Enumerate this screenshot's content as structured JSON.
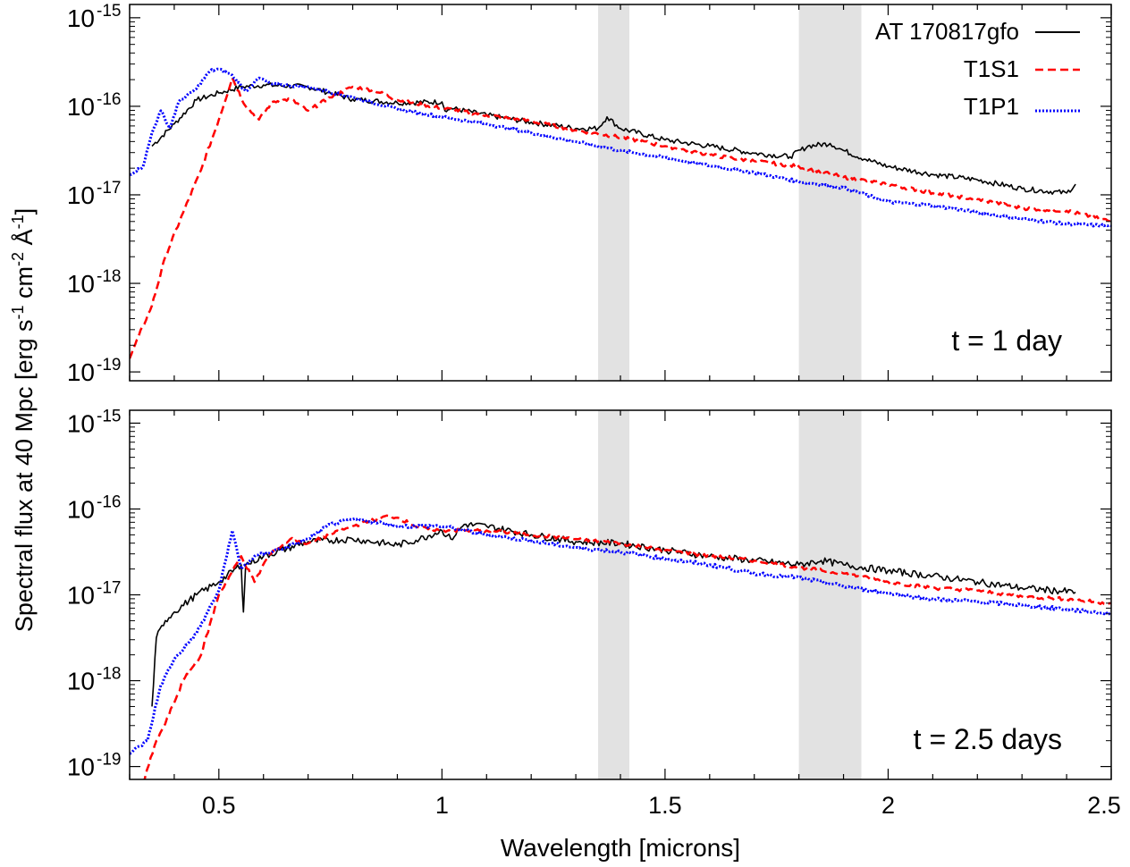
{
  "chart_data": [
    {
      "type": "line",
      "panel": "top",
      "annotation": "t = 1 day",
      "xlim": [
        0.3,
        2.5
      ],
      "ylim_log10": [
        -19.1,
        -14.85
      ],
      "yscale": "log",
      "xticks": [
        0.5,
        1,
        1.5,
        2,
        2.5
      ],
      "yticks": [
        {
          "exp": -19,
          "label_base": "10",
          "label_exp": "-19"
        },
        {
          "exp": -18,
          "label_base": "10",
          "label_exp": "-18"
        },
        {
          "exp": -17,
          "label_base": "10",
          "label_exp": "-17"
        },
        {
          "exp": -16,
          "label_base": "10",
          "label_exp": "-16"
        },
        {
          "exp": -15,
          "label_base": "10",
          "label_exp": "-15"
        }
      ],
      "shaded_bands": [
        [
          1.35,
          1.42
        ],
        [
          1.8,
          1.94
        ]
      ],
      "series": [
        {
          "name": "AT 170817gfo",
          "style": "solid",
          "color": "#000000",
          "noise": 0.03,
          "points": [
            [
              0.35,
              -16.45
            ],
            [
              0.4,
              -16.2
            ],
            [
              0.45,
              -15.93
            ],
            [
              0.5,
              -15.85
            ],
            [
              0.55,
              -15.78
            ],
            [
              0.6,
              -15.76
            ],
            [
              0.7,
              -15.78
            ],
            [
              0.75,
              -15.85
            ],
            [
              0.8,
              -15.92
            ],
            [
              0.9,
              -15.96
            ],
            [
              1.0,
              -15.95
            ],
            [
              1.01,
              -16.06
            ],
            [
              1.02,
              -16.02
            ],
            [
              1.1,
              -16.1
            ],
            [
              1.2,
              -16.18
            ],
            [
              1.3,
              -16.25
            ],
            [
              1.35,
              -16.25
            ],
            [
              1.37,
              -16.12
            ],
            [
              1.4,
              -16.25
            ],
            [
              1.5,
              -16.38
            ],
            [
              1.6,
              -16.45
            ],
            [
              1.7,
              -16.53
            ],
            [
              1.78,
              -16.57
            ],
            [
              1.82,
              -16.45
            ],
            [
              1.87,
              -16.42
            ],
            [
              1.9,
              -16.5
            ],
            [
              1.95,
              -16.6
            ],
            [
              2.0,
              -16.68
            ],
            [
              2.1,
              -16.77
            ],
            [
              2.2,
              -16.83
            ],
            [
              2.3,
              -16.93
            ],
            [
              2.4,
              -16.98
            ],
            [
              2.42,
              -16.88
            ]
          ]
        },
        {
          "name": "T1S1",
          "style": "dashed",
          "color": "#ff0000",
          "noise": 0.02,
          "points": [
            [
              0.3,
              -18.85
            ],
            [
              0.32,
              -18.6
            ],
            [
              0.35,
              -18.25
            ],
            [
              0.38,
              -17.7
            ],
            [
              0.42,
              -17.2
            ],
            [
              0.46,
              -16.72
            ],
            [
              0.5,
              -16.15
            ],
            [
              0.53,
              -15.68
            ],
            [
              0.56,
              -16.0
            ],
            [
              0.59,
              -16.15
            ],
            [
              0.62,
              -15.95
            ],
            [
              0.66,
              -15.92
            ],
            [
              0.7,
              -16.05
            ],
            [
              0.75,
              -15.9
            ],
            [
              0.8,
              -15.78
            ],
            [
              0.85,
              -15.82
            ],
            [
              0.9,
              -15.93
            ],
            [
              1.0,
              -16.02
            ],
            [
              1.1,
              -16.1
            ],
            [
              1.2,
              -16.17
            ],
            [
              1.3,
              -16.27
            ],
            [
              1.4,
              -16.35
            ],
            [
              1.5,
              -16.45
            ],
            [
              1.6,
              -16.55
            ],
            [
              1.7,
              -16.62
            ],
            [
              1.8,
              -16.68
            ],
            [
              1.9,
              -16.8
            ],
            [
              2.0,
              -16.88
            ],
            [
              2.1,
              -16.98
            ],
            [
              2.2,
              -17.05
            ],
            [
              2.3,
              -17.15
            ],
            [
              2.4,
              -17.18
            ],
            [
              2.5,
              -17.3
            ]
          ]
        },
        {
          "name": "T1P1",
          "style": "dotted",
          "color": "#0000ff",
          "noise": 0.015,
          "points": [
            [
              0.3,
              -16.77
            ],
            [
              0.33,
              -16.68
            ],
            [
              0.35,
              -16.3
            ],
            [
              0.37,
              -16.05
            ],
            [
              0.39,
              -16.25
            ],
            [
              0.41,
              -15.95
            ],
            [
              0.45,
              -15.8
            ],
            [
              0.48,
              -15.6
            ],
            [
              0.5,
              -15.58
            ],
            [
              0.53,
              -15.65
            ],
            [
              0.56,
              -15.83
            ],
            [
              0.59,
              -15.68
            ],
            [
              0.62,
              -15.75
            ],
            [
              0.7,
              -15.78
            ],
            [
              0.8,
              -15.9
            ],
            [
              0.9,
              -16.03
            ],
            [
              1.0,
              -16.12
            ],
            [
              1.1,
              -16.2
            ],
            [
              1.2,
              -16.3
            ],
            [
              1.3,
              -16.4
            ],
            [
              1.4,
              -16.5
            ],
            [
              1.5,
              -16.58
            ],
            [
              1.6,
              -16.67
            ],
            [
              1.7,
              -16.75
            ],
            [
              1.8,
              -16.85
            ],
            [
              1.9,
              -16.92
            ],
            [
              2.0,
              -17.08
            ],
            [
              2.1,
              -17.12
            ],
            [
              2.2,
              -17.2
            ],
            [
              2.3,
              -17.27
            ],
            [
              2.4,
              -17.33
            ],
            [
              2.5,
              -17.35
            ]
          ]
        }
      ],
      "legend": {
        "placement": "top-right",
        "entries": [
          "AT 170817gfo",
          "T1S1",
          "T1P1"
        ]
      }
    },
    {
      "type": "line",
      "panel": "bottom",
      "annotation": "t = 2.5 days",
      "xlim": [
        0.3,
        2.5
      ],
      "ylim_log10": [
        -19.15,
        -14.85
      ],
      "yscale": "log",
      "xticks": [
        0.5,
        1,
        1.5,
        2,
        2.5
      ],
      "yticks": [
        {
          "exp": -19,
          "label_base": "10",
          "label_exp": "-19"
        },
        {
          "exp": -18,
          "label_base": "10",
          "label_exp": "-18"
        },
        {
          "exp": -17,
          "label_base": "10",
          "label_exp": "-17"
        },
        {
          "exp": -16,
          "label_base": "10",
          "label_exp": "-16"
        },
        {
          "exp": -15,
          "label_base": "10",
          "label_exp": "-15"
        }
      ],
      "shaded_bands": [
        [
          1.35,
          1.42
        ],
        [
          1.8,
          1.94
        ]
      ],
      "series": [
        {
          "name": "AT 170817gfo",
          "style": "solid",
          "color": "#000000",
          "noise": 0.04,
          "points": [
            [
              0.35,
              -18.3
            ],
            [
              0.36,
              -17.5
            ],
            [
              0.38,
              -17.3
            ],
            [
              0.4,
              -17.2
            ],
            [
              0.45,
              -17.0
            ],
            [
              0.5,
              -16.85
            ],
            [
              0.55,
              -16.65
            ],
            [
              0.555,
              -17.2
            ],
            [
              0.56,
              -16.65
            ],
            [
              0.6,
              -16.55
            ],
            [
              0.7,
              -16.38
            ],
            [
              0.8,
              -16.35
            ],
            [
              0.9,
              -16.42
            ],
            [
              0.95,
              -16.35
            ],
            [
              1.0,
              -16.25
            ],
            [
              1.02,
              -16.35
            ],
            [
              1.05,
              -16.18
            ],
            [
              1.1,
              -16.2
            ],
            [
              1.2,
              -16.3
            ],
            [
              1.3,
              -16.38
            ],
            [
              1.4,
              -16.4
            ],
            [
              1.5,
              -16.48
            ],
            [
              1.6,
              -16.55
            ],
            [
              1.7,
              -16.6
            ],
            [
              1.8,
              -16.65
            ],
            [
              1.85,
              -16.6
            ],
            [
              1.9,
              -16.65
            ],
            [
              2.0,
              -16.72
            ],
            [
              2.1,
              -16.78
            ],
            [
              2.2,
              -16.85
            ],
            [
              2.3,
              -16.92
            ],
            [
              2.42,
              -16.97
            ]
          ]
        },
        {
          "name": "T1S1",
          "style": "dashed",
          "color": "#ff0000",
          "noise": 0.02,
          "points": [
            [
              0.33,
              -19.2
            ],
            [
              0.36,
              -18.7
            ],
            [
              0.38,
              -18.5
            ],
            [
              0.42,
              -18.0
            ],
            [
              0.46,
              -17.7
            ],
            [
              0.5,
              -17.0
            ],
            [
              0.55,
              -16.55
            ],
            [
              0.58,
              -16.85
            ],
            [
              0.61,
              -16.55
            ],
            [
              0.66,
              -16.35
            ],
            [
              0.7,
              -16.4
            ],
            [
              0.75,
              -16.3
            ],
            [
              0.8,
              -16.2
            ],
            [
              0.88,
              -16.08
            ],
            [
              0.9,
              -16.1
            ],
            [
              0.95,
              -16.22
            ],
            [
              1.0,
              -16.25
            ],
            [
              1.1,
              -16.25
            ],
            [
              1.2,
              -16.3
            ],
            [
              1.3,
              -16.35
            ],
            [
              1.4,
              -16.4
            ],
            [
              1.5,
              -16.48
            ],
            [
              1.6,
              -16.55
            ],
            [
              1.7,
              -16.6
            ],
            [
              1.8,
              -16.68
            ],
            [
              1.9,
              -16.75
            ],
            [
              2.0,
              -16.85
            ],
            [
              2.1,
              -16.92
            ],
            [
              2.2,
              -16.95
            ],
            [
              2.3,
              -17.02
            ],
            [
              2.4,
              -17.05
            ],
            [
              2.5,
              -17.1
            ]
          ]
        },
        {
          "name": "T1P1",
          "style": "dotted",
          "color": "#0000ff",
          "noise": 0.02,
          "points": [
            [
              0.3,
              -18.85
            ],
            [
              0.34,
              -18.7
            ],
            [
              0.37,
              -18.05
            ],
            [
              0.4,
              -17.75
            ],
            [
              0.45,
              -17.45
            ],
            [
              0.5,
              -16.95
            ],
            [
              0.53,
              -16.25
            ],
            [
              0.55,
              -16.7
            ],
            [
              0.58,
              -16.55
            ],
            [
              0.65,
              -16.45
            ],
            [
              0.7,
              -16.35
            ],
            [
              0.75,
              -16.18
            ],
            [
              0.8,
              -16.12
            ],
            [
              0.85,
              -16.15
            ],
            [
              0.9,
              -16.2
            ],
            [
              1.0,
              -16.2
            ],
            [
              1.05,
              -16.25
            ],
            [
              1.1,
              -16.3
            ],
            [
              1.2,
              -16.37
            ],
            [
              1.3,
              -16.45
            ],
            [
              1.4,
              -16.5
            ],
            [
              1.5,
              -16.58
            ],
            [
              1.6,
              -16.65
            ],
            [
              1.7,
              -16.75
            ],
            [
              1.8,
              -16.8
            ],
            [
              1.9,
              -16.9
            ],
            [
              2.0,
              -16.98
            ],
            [
              2.1,
              -17.05
            ],
            [
              2.2,
              -17.08
            ],
            [
              2.3,
              -17.12
            ],
            [
              2.4,
              -17.17
            ],
            [
              2.5,
              -17.22
            ]
          ]
        }
      ]
    }
  ],
  "axis_labels": {
    "xlabel": "Wavelength [microns]",
    "ylabel_parts": {
      "p1": "Spectral flux at 40 Mpc [erg s",
      "e1": "-1",
      "p2": " cm",
      "e2": "-2",
      "p3": " Å",
      "e3": "-1",
      "p4": "]"
    }
  },
  "colors": {
    "band": "#e2e2e2",
    "observed": "#000000",
    "t1s1": "#ff0000",
    "t1p1": "#0000ff"
  }
}
